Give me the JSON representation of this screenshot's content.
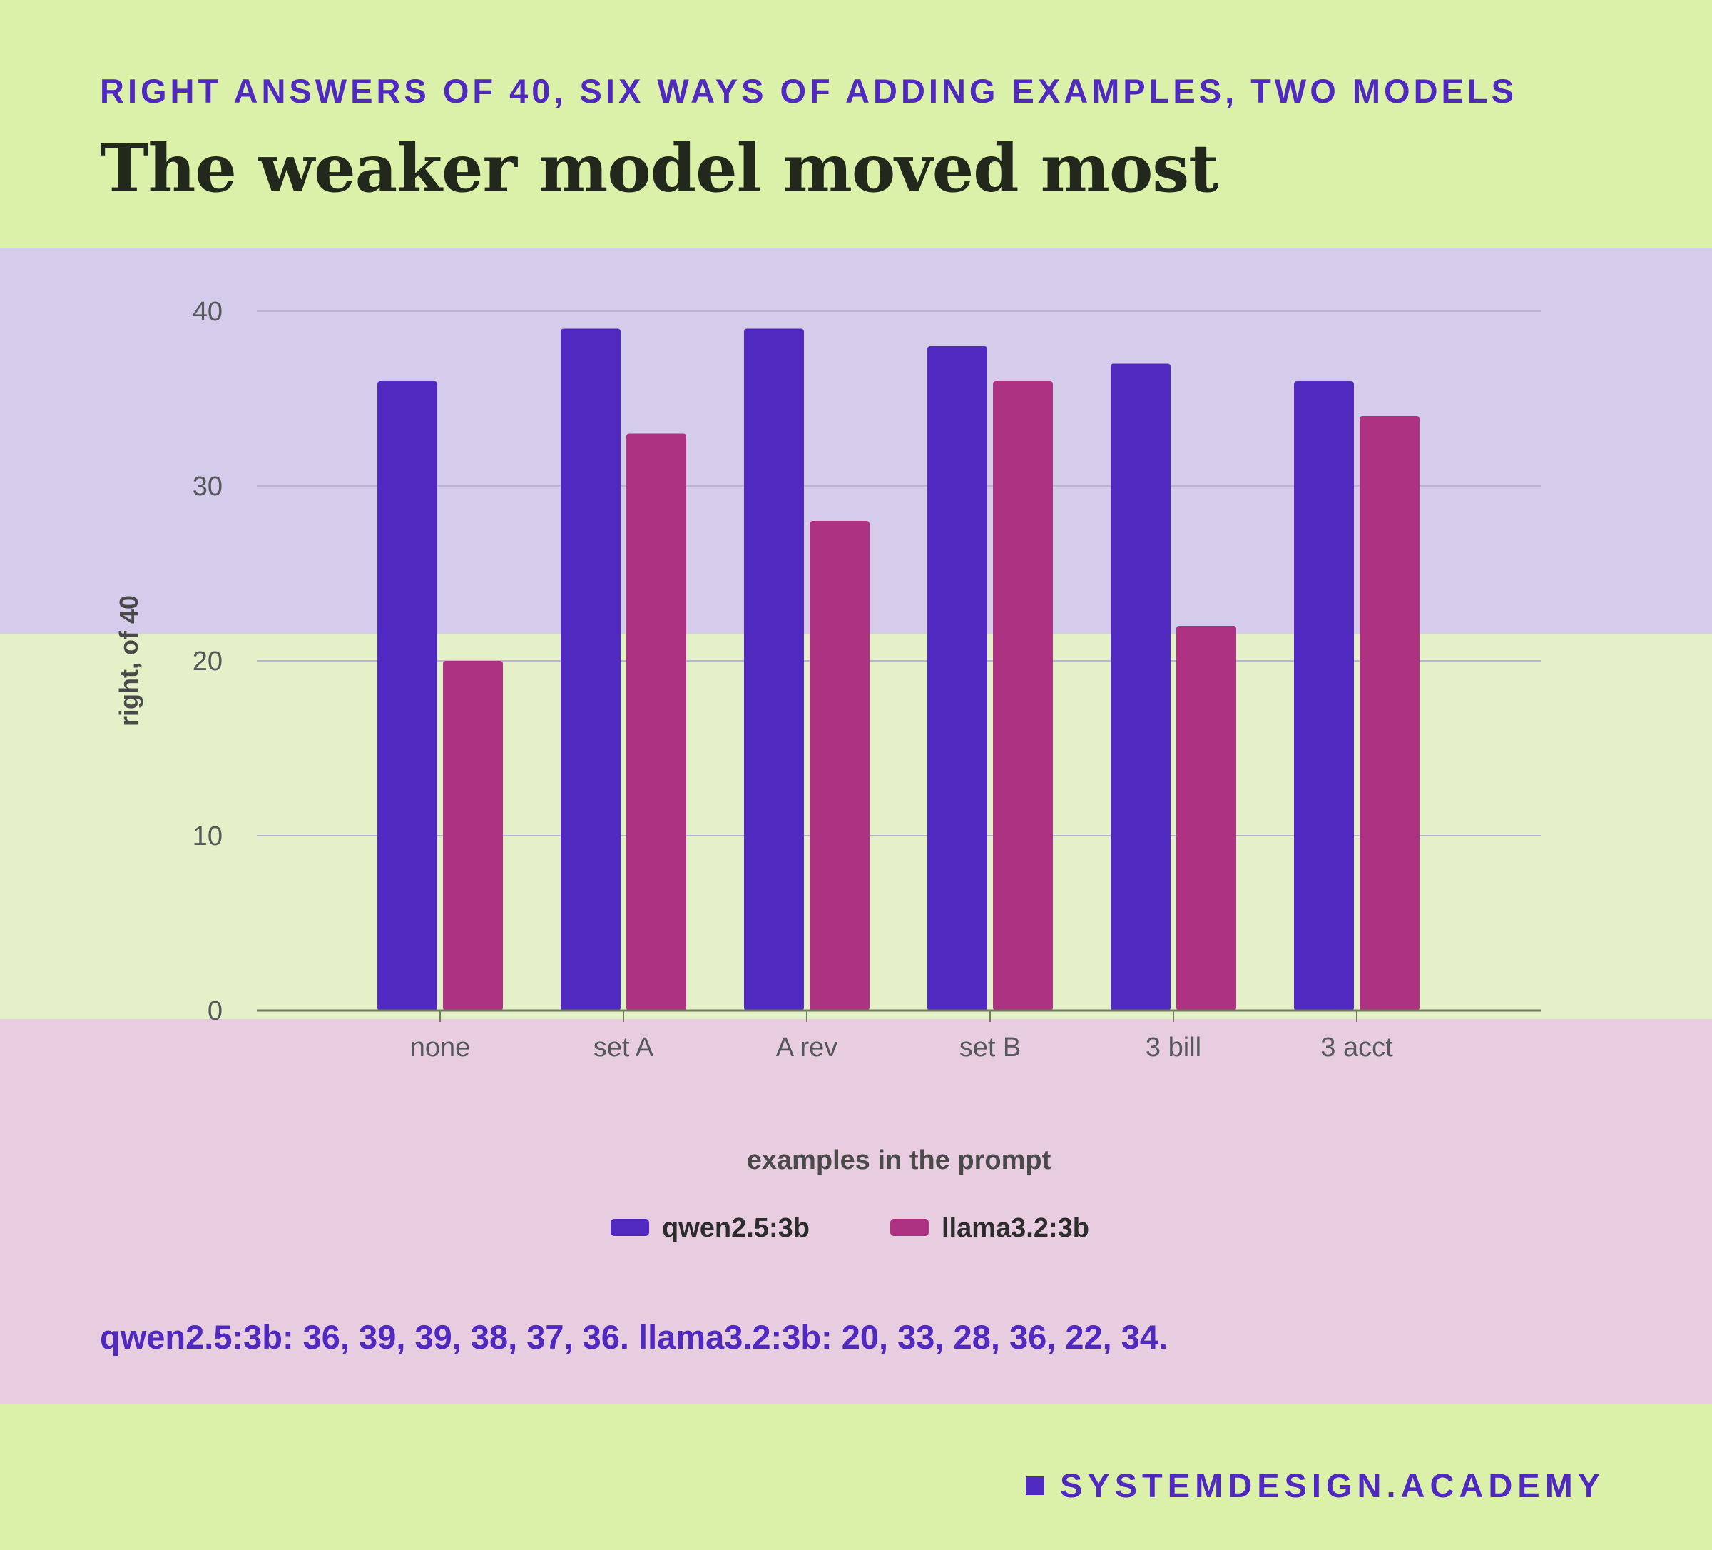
{
  "eyebrow": "RIGHT ANSWERS OF 40, SIX WAYS OF ADDING EXAMPLES, TWO MODELS",
  "headline": "The weaker model moved most",
  "summary": "qwen2.5:3b: 36, 39, 39, 38, 37, 36. llama3.2:3b: 20, 33, 28, 36, 22, 34.",
  "brand": "SYSTEMDESIGN.ACADEMY",
  "colors": {
    "series_1": "#5029c1",
    "series_2": "#ad3382",
    "axis_text": "#55585a",
    "axis_title": "#4a4a4a",
    "gridline": "#bdb4d3"
  },
  "chart_data": {
    "type": "bar",
    "categories": [
      "none",
      "set A",
      "A rev",
      "set B",
      "3 bill",
      "3 acct"
    ],
    "series": [
      {
        "name": "qwen2.5:3b",
        "values": [
          36,
          39,
          39,
          38,
          37,
          36
        ]
      },
      {
        "name": "llama3.2:3b",
        "values": [
          20,
          33,
          28,
          36,
          22,
          34
        ]
      }
    ],
    "xlabel": "examples in the prompt",
    "ylabel": "right, of 40",
    "ylim": [
      0,
      40
    ],
    "yticks": [
      0,
      10,
      20,
      30,
      40
    ],
    "grid": true,
    "legend_position": "bottom-center"
  }
}
